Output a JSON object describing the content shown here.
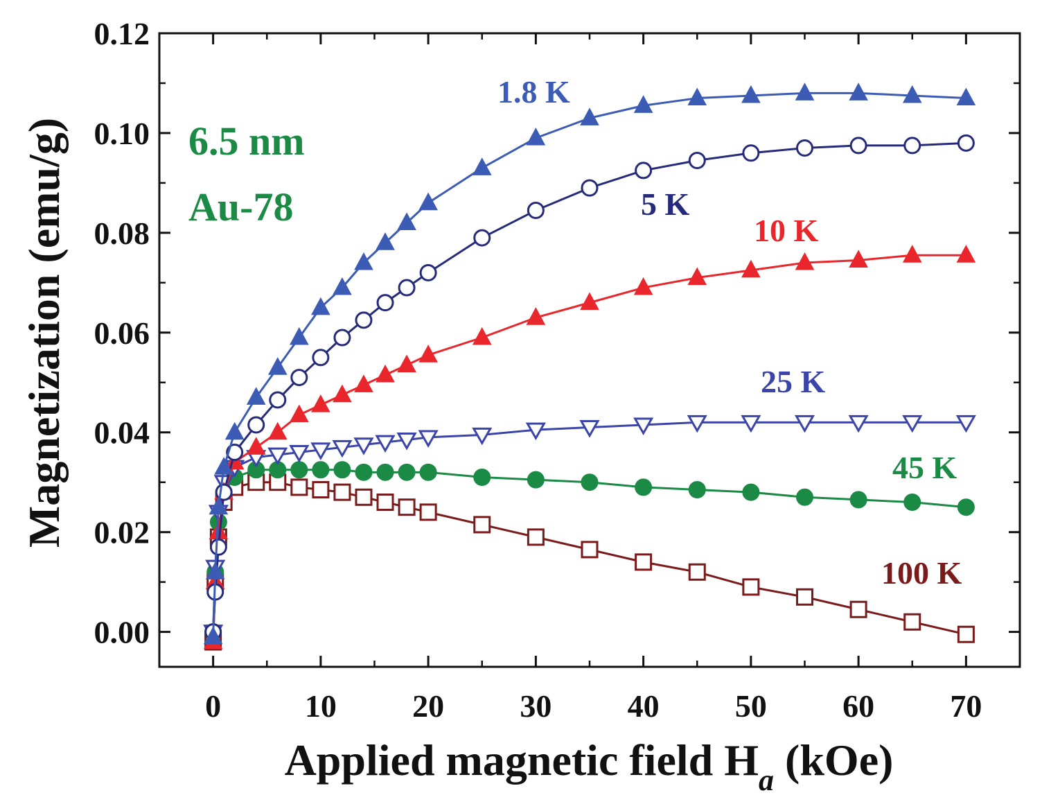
{
  "chart_data": {
    "type": "line",
    "title": "",
    "xlabel": "Applied magnetic field H",
    "xlabel_sub": "a",
    "xlabel_unit": " (kOe)",
    "ylabel": "Magnetization (emu/g)",
    "xlim": [
      -5,
      75
    ],
    "ylim": [
      -0.007,
      0.12
    ],
    "xticks": [
      0,
      10,
      20,
      30,
      40,
      50,
      60,
      70
    ],
    "xtick_labels": [
      "0",
      "10",
      "20",
      "30",
      "40",
      "50",
      "60",
      "70"
    ],
    "yticks": [
      0.0,
      0.02,
      0.04,
      0.06,
      0.08,
      0.1,
      0.12
    ],
    "ytick_labels": [
      "0.00",
      "0.02",
      "0.04",
      "0.06",
      "0.08",
      "0.10",
      "0.12"
    ],
    "annotations": [
      "6.5 nm",
      "Au-78"
    ],
    "annotation_color": "#1a8a45",
    "series": [
      {
        "name": "1.8 K",
        "color": "#3b5bb5",
        "marker": "triangle-up-filled",
        "x": [
          0,
          0.2,
          0.5,
          1,
          2,
          4,
          6,
          8,
          10,
          12,
          14,
          16,
          18,
          20,
          25,
          30,
          35,
          40,
          45,
          50,
          55,
          60,
          65,
          70
        ],
        "y": [
          -0.001,
          0.012,
          0.025,
          0.033,
          0.04,
          0.047,
          0.053,
          0.059,
          0.065,
          0.069,
          0.074,
          0.078,
          0.082,
          0.086,
          0.093,
          0.099,
          0.103,
          0.1055,
          0.107,
          0.1075,
          0.108,
          0.108,
          0.1075,
          0.107
        ]
      },
      {
        "name": "5 K",
        "color": "#252b7a",
        "marker": "circle-open",
        "x": [
          0,
          0.2,
          0.5,
          1,
          2,
          4,
          6,
          8,
          10,
          12,
          14,
          16,
          18,
          20,
          25,
          30,
          35,
          40,
          45,
          50,
          55,
          60,
          65,
          70
        ],
        "y": [
          0.0,
          0.008,
          0.017,
          0.028,
          0.036,
          0.0415,
          0.0465,
          0.051,
          0.055,
          0.059,
          0.0625,
          0.066,
          0.069,
          0.072,
          0.079,
          0.0845,
          0.089,
          0.0925,
          0.0945,
          0.096,
          0.097,
          0.0975,
          0.0975,
          0.098
        ]
      },
      {
        "name": "10 K",
        "color": "#e8262b",
        "marker": "triangle-up-filled",
        "x": [
          0,
          0.2,
          0.5,
          1,
          2,
          4,
          6,
          8,
          10,
          12,
          14,
          16,
          18,
          20,
          25,
          30,
          35,
          40,
          45,
          50,
          55,
          60,
          65,
          70
        ],
        "y": [
          -0.002,
          0.01,
          0.02,
          0.028,
          0.034,
          0.037,
          0.04,
          0.0435,
          0.0455,
          0.0475,
          0.0495,
          0.0515,
          0.0535,
          0.0555,
          0.059,
          0.063,
          0.066,
          0.069,
          0.071,
          0.0725,
          0.074,
          0.0745,
          0.0755,
          0.0755
        ]
      },
      {
        "name": "25 K",
        "color": "#3b44a8",
        "marker": "triangle-down-open",
        "x": [
          0,
          0.2,
          0.5,
          1,
          2,
          4,
          6,
          8,
          10,
          12,
          14,
          16,
          18,
          20,
          25,
          30,
          35,
          40,
          45,
          50,
          55,
          60,
          65,
          70
        ],
        "y": [
          0.0,
          0.013,
          0.024,
          0.03,
          0.033,
          0.035,
          0.0355,
          0.036,
          0.0365,
          0.037,
          0.0375,
          0.038,
          0.0385,
          0.039,
          0.0395,
          0.0405,
          0.041,
          0.0415,
          0.042,
          0.042,
          0.042,
          0.042,
          0.042,
          0.042
        ]
      },
      {
        "name": "45 K",
        "color": "#1a8a45",
        "marker": "circle-filled",
        "x": [
          0,
          0.2,
          0.5,
          1,
          2,
          4,
          6,
          8,
          10,
          12,
          14,
          16,
          18,
          20,
          25,
          30,
          35,
          40,
          45,
          50,
          55,
          60,
          65,
          70
        ],
        "y": [
          0.0,
          0.012,
          0.022,
          0.028,
          0.031,
          0.0325,
          0.0325,
          0.0325,
          0.0325,
          0.0325,
          0.032,
          0.032,
          0.032,
          0.032,
          0.031,
          0.0305,
          0.03,
          0.029,
          0.0285,
          0.028,
          0.027,
          0.0265,
          0.026,
          0.025
        ]
      },
      {
        "name": "100 K",
        "color": "#7a1a1a",
        "marker": "square-open",
        "x": [
          0,
          0.2,
          0.5,
          1,
          2,
          4,
          6,
          8,
          10,
          12,
          14,
          16,
          18,
          20,
          25,
          30,
          35,
          40,
          45,
          50,
          55,
          60,
          65,
          70
        ],
        "y": [
          -0.002,
          0.01,
          0.019,
          0.026,
          0.029,
          0.03,
          0.03,
          0.029,
          0.0285,
          0.028,
          0.027,
          0.026,
          0.025,
          0.024,
          0.0215,
          0.019,
          0.0165,
          0.014,
          0.012,
          0.009,
          0.007,
          0.0045,
          0.002,
          -0.0005
        ]
      }
    ]
  }
}
